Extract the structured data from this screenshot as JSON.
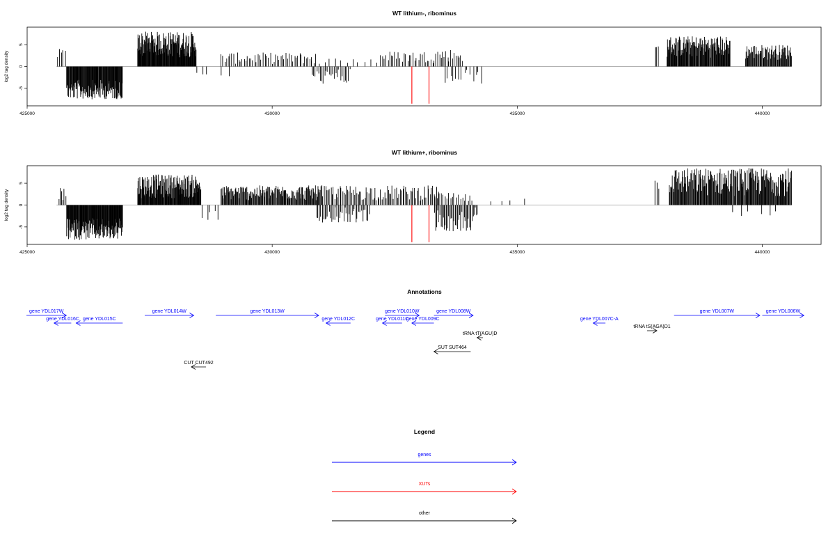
{
  "colors": {
    "genes": "#0000ff",
    "xuts": "#ff0000",
    "other": "#000000",
    "baseline": "#999999"
  },
  "chart_data": [
    {
      "type": "bar",
      "title": "WT lithium-, ribominus",
      "ylabel": "log2 tag density",
      "xlim": [
        425000,
        441200
      ],
      "ylim": [
        -9,
        9
      ],
      "x_ticks": [
        425000,
        430000,
        435000,
        440000
      ],
      "y_ticks": [
        5,
        0,
        -5
      ],
      "grid": false,
      "regions": [
        {
          "start": 425600,
          "end": 425800,
          "min": 1,
          "max": 4,
          "sign": 1,
          "n": 5
        },
        {
          "start": 425800,
          "end": 426950,
          "min": 3,
          "max": 7.5,
          "sign": -1,
          "n": 120
        },
        {
          "start": 427250,
          "end": 428450,
          "min": 2,
          "max": 8,
          "sign": 1,
          "n": 140
        },
        {
          "start": 428450,
          "end": 428700,
          "min": 0.5,
          "max": 2,
          "sign": -1,
          "n": 3
        },
        {
          "start": 428950,
          "end": 430900,
          "min": 0.5,
          "max": 3.2,
          "sign": 1,
          "n": 55
        },
        {
          "start": 428950,
          "end": 429150,
          "min": 1,
          "max": 2.5,
          "sign": -1,
          "n": 2
        },
        {
          "start": 430800,
          "end": 431600,
          "min": 0.5,
          "max": 4,
          "sign": -1,
          "n": 25
        },
        {
          "start": 430800,
          "end": 432200,
          "min": 0.5,
          "max": 2,
          "sign": 1,
          "n": 12
        },
        {
          "start": 432200,
          "end": 433300,
          "min": 0.8,
          "max": 3.5,
          "sign": 1,
          "n": 30
        },
        {
          "start": 433300,
          "end": 433900,
          "min": 1,
          "max": 4,
          "sign": 1,
          "n": 18
        },
        {
          "start": 433500,
          "end": 434300,
          "min": 0.5,
          "max": 4,
          "sign": -1,
          "n": 14
        },
        {
          "start": 437800,
          "end": 437900,
          "min": 3,
          "max": 5,
          "sign": 1,
          "n": 3
        },
        {
          "start": 438050,
          "end": 439350,
          "min": 2,
          "max": 7,
          "sign": 1,
          "n": 120
        },
        {
          "start": 439650,
          "end": 440600,
          "min": 1.5,
          "max": 5,
          "sign": 1,
          "n": 70
        }
      ],
      "xut_lines": [
        {
          "x": 432850,
          "y0": 0,
          "y1": -8.5
        },
        {
          "x": 433200,
          "y0": 0,
          "y1": -8.5
        }
      ]
    },
    {
      "type": "bar",
      "title": "WT lithium+, ribominus",
      "ylabel": "log2 tag density",
      "xlim": [
        425000,
        441200
      ],
      "ylim": [
        -9,
        9
      ],
      "x_ticks": [
        425000,
        430000,
        435000,
        440000
      ],
      "y_ticks": [
        5,
        0,
        -5
      ],
      "grid": false,
      "regions": [
        {
          "start": 425650,
          "end": 425800,
          "min": 1,
          "max": 4.5,
          "sign": 1,
          "n": 6
        },
        {
          "start": 425800,
          "end": 426950,
          "min": 3,
          "max": 8,
          "sign": -1,
          "n": 130
        },
        {
          "start": 427250,
          "end": 428550,
          "min": 1.5,
          "max": 7,
          "sign": 1,
          "n": 140
        },
        {
          "start": 428550,
          "end": 428950,
          "min": 0.5,
          "max": 3.5,
          "sign": -1,
          "n": 5
        },
        {
          "start": 428950,
          "end": 431000,
          "min": 1,
          "max": 4.5,
          "sign": 1,
          "n": 150
        },
        {
          "start": 430900,
          "end": 432000,
          "min": 0.5,
          "max": 4,
          "sign": -1,
          "n": 40
        },
        {
          "start": 431000,
          "end": 433400,
          "min": 1,
          "max": 4.5,
          "sign": 1,
          "n": 90
        },
        {
          "start": 433300,
          "end": 434200,
          "min": 0.5,
          "max": 6,
          "sign": -1,
          "n": 40
        },
        {
          "start": 433300,
          "end": 434100,
          "min": 0.5,
          "max": 3,
          "sign": 1,
          "n": 20
        },
        {
          "start": 434300,
          "end": 435200,
          "min": 0.5,
          "max": 2,
          "sign": 1,
          "n": 4
        },
        {
          "start": 437800,
          "end": 437900,
          "min": 3.5,
          "max": 6,
          "sign": 1,
          "n": 3
        },
        {
          "start": 438100,
          "end": 440600,
          "min": 2,
          "max": 8.5,
          "sign": 1,
          "n": 200
        },
        {
          "start": 439300,
          "end": 440400,
          "min": 0.5,
          "max": 2.5,
          "sign": -1,
          "n": 6
        }
      ],
      "xut_lines": [
        {
          "x": 432850,
          "y0": 0,
          "y1": -8.5
        },
        {
          "x": 433200,
          "y0": 0,
          "y1": -8.5
        }
      ]
    }
  ],
  "annotations": {
    "title": "Annotations",
    "xlim": [
      425000,
      441200
    ],
    "features": [
      {
        "label": "gene YDL017W",
        "cls": "gene",
        "start": 424500,
        "end": 425800,
        "strand": "+",
        "row": 0
      },
      {
        "label": "gene YDL016C",
        "cls": "gene",
        "start": 425550,
        "end": 425900,
        "strand": "-",
        "row": 1
      },
      {
        "label": "gene YDL015C",
        "cls": "gene",
        "start": 426000,
        "end": 426950,
        "strand": "-",
        "row": 1
      },
      {
        "label": "gene YDL014W",
        "cls": "gene",
        "start": 427400,
        "end": 428400,
        "strand": "+",
        "row": 0
      },
      {
        "label": "gene YDL013W",
        "cls": "gene",
        "start": 428850,
        "end": 430950,
        "strand": "+",
        "row": 0
      },
      {
        "label": "gene YDL012C",
        "cls": "gene",
        "start": 431100,
        "end": 431600,
        "strand": "-",
        "row": 1
      },
      {
        "label": "gene YDL010W",
        "cls": "gene",
        "start": 432300,
        "end": 433000,
        "strand": "+",
        "row": 0
      },
      {
        "label": "gene YDL011C",
        "cls": "gene",
        "start": 432250,
        "end": 432650,
        "strand": "-",
        "row": 1
      },
      {
        "label": "gene YDL009C",
        "cls": "gene",
        "start": 432850,
        "end": 433300,
        "strand": "-",
        "row": 1
      },
      {
        "label": "gene YDL008W",
        "cls": "gene",
        "start": 433300,
        "end": 434100,
        "strand": "+",
        "row": 0
      },
      {
        "label": "tRNA tT(AGU)D",
        "cls": "other",
        "start": 434180,
        "end": 434300,
        "strand": "-",
        "row": 2
      },
      {
        "label": "SUT SUT464",
        "cls": "other",
        "start": 433300,
        "end": 434050,
        "strand": "-",
        "row": 3
      },
      {
        "label": "CUT CUT492",
        "cls": "other",
        "start": 428350,
        "end": 428650,
        "strand": "-",
        "row": 4
      },
      {
        "label": "gene YDL007C-A",
        "cls": "gene",
        "start": 436550,
        "end": 436800,
        "strand": "-",
        "row": 1
      },
      {
        "label": "tRNA tS(AGA)D1",
        "cls": "other",
        "start": 437650,
        "end": 437850,
        "strand": "+",
        "row": 1.6
      },
      {
        "label": "gene YDL007W",
        "cls": "gene",
        "start": 438200,
        "end": 439950,
        "strand": "+",
        "row": 0
      },
      {
        "label": "gene YDL006W",
        "cls": "gene",
        "start": 440000,
        "end": 440850,
        "strand": "+",
        "row": 0
      }
    ]
  },
  "legend": {
    "title": "Legend",
    "items": [
      {
        "label": "genes",
        "cls": "genes"
      },
      {
        "label": "XUTs",
        "cls": "xuts"
      },
      {
        "label": "other",
        "cls": "other"
      }
    ]
  }
}
